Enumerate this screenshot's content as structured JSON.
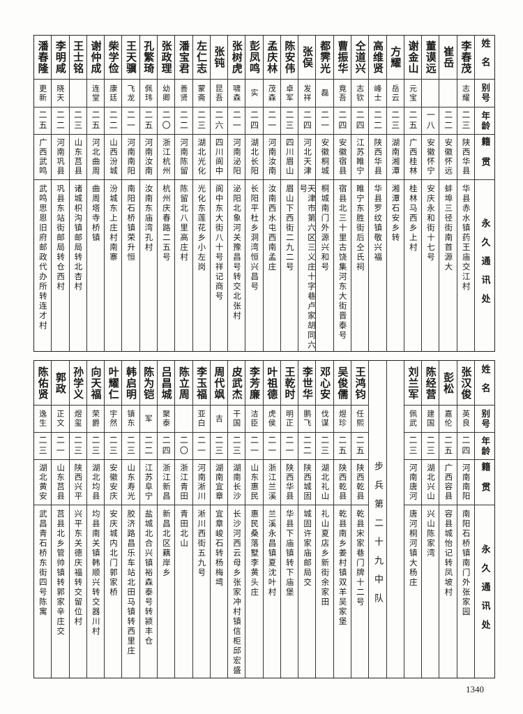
{
  "headers": {
    "name": "姓名",
    "alias": "别号",
    "age": "年龄",
    "origin": "籍贯",
    "address": "永久通讯处"
  },
  "top_table": [
    {
      "name": "李春茂",
      "alias": "志耀",
      "age": "二三",
      "origin": "陕西华县",
      "address": "华县赤水镇药王庙交江村"
    },
    {
      "name": "崔岳",
      "alias": "",
      "age": "二二",
      "origin": "安徽怀远",
      "address": "蚌埠三径街南首源大"
    },
    {
      "name": "董谟远",
      "alias": "",
      "age": "一八",
      "origin": "安徽怀宁",
      "address": "安庆永和街十七号"
    },
    {
      "name": "谢金山",
      "alias": "元宝",
      "age": "二五",
      "origin": "广西桂林",
      "address": "桂林马西乡上村"
    },
    {
      "name": "方耀",
      "alias": "岳云",
      "age": "二三",
      "origin": "湖南湘潭",
      "address": "湘潭石安乡转"
    },
    {
      "name": "高维贤",
      "alias": "峰士",
      "age": "二二",
      "origin": "陕西华县",
      "address": "华县罗纹镇敬兴福"
    },
    {
      "name": "仝道兴",
      "alias": "志钦",
      "age": "二四",
      "origin": "江苏睢宁",
      "address": "睢宁东胜街后仝氏祠"
    },
    {
      "name": "曹振华",
      "alias": "竟吾",
      "age": "二四",
      "origin": "安徽宿县",
      "address": "宿县北三十里古饶集河东大街晋泰号"
    },
    {
      "name": "都霁光",
      "alias": "磊",
      "age": "二一",
      "origin": "安徽桐城",
      "address": "桐城南门外源兴和号"
    },
    {
      "name": "张俣",
      "alias": "发祥",
      "age": "二四",
      "origin": "河北天津",
      "address": "天津市第六区三义庄十字巷卢家胡同六号"
    },
    {
      "name": "陈安伟",
      "alias": "卓军",
      "age": "二三",
      "origin": "四川眉山",
      "address": "眉山下西街二九二号"
    },
    {
      "name": "孟庆林",
      "alias": "茂森",
      "age": "二一",
      "origin": "河南汝南",
      "address": "汝南西水屯西南孟庄"
    },
    {
      "name": "彭凤鸣",
      "alias": "实",
      "age": "二四",
      "origin": "湖北长阳",
      "address": "长阳平杜乡洞湾恒兴昌号"
    },
    {
      "name": "张树虎",
      "alias": "啸森",
      "age": "二一",
      "origin": "河南泌阳",
      "address": "泌阳北象河关豫昌号转交北张村"
    },
    {
      "name": "张钝",
      "alias": "昆吾",
      "age": "二六",
      "origin": "四川阆中",
      "address": "阆中东大街八十号祥记商号"
    },
    {
      "name": "左仁志",
      "alias": "蒙斋",
      "age": "二三",
      "origin": "湖北光化",
      "address": "光化东莲花乡小左岗"
    },
    {
      "name": "潘宝君",
      "alias": "善贤",
      "age": "二二",
      "origin": "河南陈留",
      "address": "陈留北八里高庄村"
    },
    {
      "name": "张政理",
      "alias": "幼卿",
      "age": "二〇",
      "origin": "浙江杭州",
      "address": "杭州庆春路二五号"
    },
    {
      "name": "孔繁琦",
      "alias": "佩玮",
      "age": "二五",
      "origin": "河南汝南",
      "address": "汝南东庙湾孔村"
    },
    {
      "name": "王天骥",
      "alias": "飞龙",
      "age": "二一",
      "origin": "河南南阳",
      "address": "南阳石桥镇荣升恒"
    },
    {
      "name": "柴学俭",
      "alias": "康廷",
      "age": "二二",
      "origin": "山西汾城",
      "address": "汾城东上庄村南寨"
    },
    {
      "name": "谢仲成",
      "alias": "连堂",
      "age": "二五",
      "origin": "河北曲周",
      "address": "曲周塔寺桥镇"
    },
    {
      "name": "王士铭",
      "alias": "",
      "age": "二三",
      "origin": "山东莒县",
      "address": "诸城枳沟镇邮局转北杏村"
    },
    {
      "name": "李明咸",
      "alias": "晓天",
      "age": "二二",
      "origin": "河南巩县",
      "address": "巩县东站街邮局转仓西村"
    },
    {
      "name": "潘春隆",
      "alias": "更新",
      "age": "二五",
      "origin": "广西武鸣",
      "address": "武鸣思恩旧府邮政代办所转连才村"
    }
  ],
  "bottom_table_right": [
    {
      "name": "张汉俊",
      "alias": "英良",
      "age": "二四",
      "origin": "河南南阳",
      "address": "南阳石桥镇南门外张家园"
    },
    {
      "name": "彭松",
      "alias": "嘉伦",
      "age": "二五",
      "origin": "广西容县",
      "address": "容县城怡记转凤坡村"
    },
    {
      "name": "陈经营",
      "alias": "建国",
      "age": "二三",
      "origin": "湖北兴山",
      "address": "兴山陈家湾"
    },
    {
      "name": "刘兰军",
      "alias": "佩武",
      "age": "二三",
      "origin": "河南唐河",
      "address": "唐河桐河镇大杨庄"
    }
  ],
  "section_label": "步兵第二十九中队",
  "bottom_table_left": [
    {
      "name": "王鸿钧",
      "alias": "任熙",
      "age": "二五",
      "origin": "陕西乾县",
      "address": "乾县宋家巷门牌十二号"
    },
    {
      "name": "吴俊儒",
      "alias": "煜珍",
      "age": "二五",
      "origin": "陕西乾县",
      "address": "乾县南乡姜村镇双羊吴家堡"
    },
    {
      "name": "邓心安",
      "alias": "伐谋",
      "age": "二三",
      "origin": "湖北礼山",
      "address": "礼山夏店乡新街余家田"
    },
    {
      "name": "李世华",
      "alias": "鹏飞",
      "age": "二二",
      "origin": "陕西城固",
      "address": "城固许家庙邮局交"
    },
    {
      "name": "王乾时",
      "alias": "明正",
      "age": "二一",
      "origin": "陕西华县",
      "address": "华县下庙镇转下庙堡"
    },
    {
      "name": "叶祖德",
      "alias": "虎侯",
      "age": "二一",
      "origin": "浙江兰溪",
      "address": "兰溪永昌镇夏沈叶村"
    },
    {
      "name": "李芳廉",
      "alias": "洁臣",
      "age": "二一",
      "origin": "山东惠民",
      "address": "惠民桑落墅李黄头庄"
    },
    {
      "name": "皮武杰",
      "alias": "干国",
      "age": "二三",
      "origin": "湖南长沙",
      "address": "长沙河西云母乡张家冲村镇信柜邱宏盛"
    },
    {
      "name": "周代飒",
      "alias": "吉",
      "age": "二三",
      "origin": "湖南宜章",
      "address": "宜章峻石转杨梅塆"
    },
    {
      "name": "李玉福",
      "alias": "亚白",
      "age": "二一",
      "origin": "河南淅川",
      "address": "淅川西街五九号"
    },
    {
      "name": "陈立周",
      "alias": "",
      "age": "二〇",
      "origin": "浙江青田",
      "address": "青田北山"
    },
    {
      "name": "吕昌城",
      "alias": "聚泰",
      "age": "二四",
      "origin": "浙江新昌",
      "address": "新昌北区藕岸乡"
    },
    {
      "name": "陈为铠",
      "alias": "军",
      "age": "二二",
      "origin": "江苏阜宁",
      "address": "盐城北合兴镇裕森泰号转颍丰仓"
    },
    {
      "name": "韩启明",
      "alias": "镇东",
      "age": "二三",
      "origin": "山东寿光",
      "address": "胶济路昌乐车站北田马镇转西里庄"
    },
    {
      "name": "叶耀仁",
      "alias": "宇然",
      "age": "二三",
      "origin": "安徽安庆",
      "address": "安庆城内北门郭家桥"
    },
    {
      "name": "向天福",
      "alias": "荣爵",
      "age": "二三",
      "origin": "湖北均县",
      "address": "均县南关镇韩顺兴转交器川村"
    },
    {
      "name": "孙学义",
      "alias": "煜玺",
      "age": "二三",
      "origin": "陕西兴平",
      "address": "兴平东关德庆福转交留位村"
    },
    {
      "name": "郭政",
      "alias": "正文",
      "age": "二一",
      "origin": "山东莒县",
      "address": "莒县北乡管帅镇转郭家辛庄交"
    },
    {
      "name": "陈佑贤",
      "alias": "逸生",
      "age": "二三",
      "origin": "湖北黄安",
      "address": "武昌青石桥东街四号陈寓"
    }
  ],
  "page_number": "1340"
}
